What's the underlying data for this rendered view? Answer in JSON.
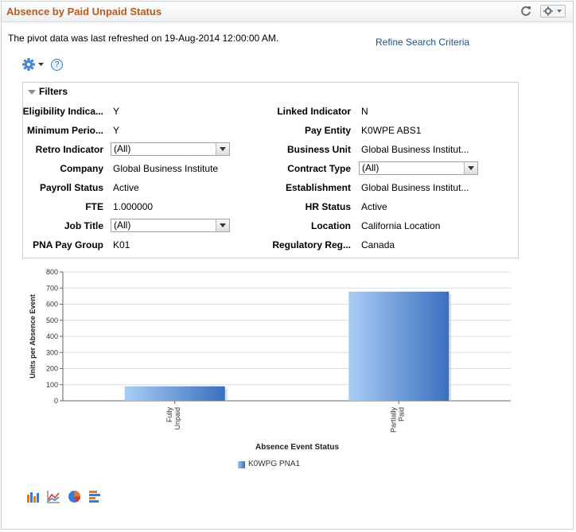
{
  "pagelet": {
    "title": "Absence by Paid Unpaid Status",
    "refresh_icon": "refresh-icon",
    "actions_icon": "gear-icon"
  },
  "refresh_text": "The pivot data was last refreshed on 19-Aug-2014 12:00:00 AM.",
  "refine_link": "Refine Search Criteria",
  "help_label": "?",
  "filters": {
    "header": "Filters",
    "left": [
      {
        "label": "Eligibility Indica...",
        "value": "Y",
        "type": "text"
      },
      {
        "label": "Minimum Perio...",
        "value": "Y",
        "type": "text"
      },
      {
        "label": "Retro Indicator",
        "value": "(All)",
        "type": "select"
      },
      {
        "label": "Company",
        "value": "Global Business Institute",
        "type": "text"
      },
      {
        "label": "Payroll Status",
        "value": "Active",
        "type": "text"
      },
      {
        "label": "FTE",
        "value": "1.000000",
        "type": "text"
      },
      {
        "label": "Job Title",
        "value": "(All)",
        "type": "select"
      },
      {
        "label": "PNA Pay Group",
        "value": "K01",
        "type": "text"
      }
    ],
    "right": [
      {
        "label": "Linked Indicator",
        "value": "N",
        "type": "text"
      },
      {
        "label": "Pay Entity",
        "value": "K0WPE ABS1",
        "type": "text"
      },
      {
        "label": "Business Unit",
        "value": "Global Business Institut...",
        "type": "text"
      },
      {
        "label": "Contract Type",
        "value": "(All)",
        "type": "select"
      },
      {
        "label": "Establishment",
        "value": "Global Business Institut...",
        "type": "text"
      },
      {
        "label": "HR Status",
        "value": "Active",
        "type": "text"
      },
      {
        "label": "Location",
        "value": "California Location",
        "type": "text"
      },
      {
        "label": "Regulatory Reg...",
        "value": "Canada",
        "type": "text"
      }
    ]
  },
  "chart_data": {
    "type": "bar",
    "categories": [
      [
        "Fully",
        "Unpaid"
      ],
      [
        "Partially",
        "Paid"
      ]
    ],
    "series": [
      {
        "name": "K0WPG PNA1",
        "values": [
          90,
          678
        ]
      }
    ],
    "xlabel": "Absence Event Status",
    "ylabel": "Units per Absence Event",
    "ylim": [
      0,
      800
    ],
    "yticks": [
      0,
      100,
      200,
      300,
      400,
      500,
      600,
      700,
      800
    ],
    "grid": true,
    "legend": "bottom",
    "colors": {
      "bar_light": "#a9cdf5",
      "bar_dark": "#3a6fbf"
    }
  },
  "chart_type_icons": [
    "bar-chart-icon",
    "line-chart-icon",
    "pie-chart-icon",
    "horizontal-bar-icon"
  ]
}
